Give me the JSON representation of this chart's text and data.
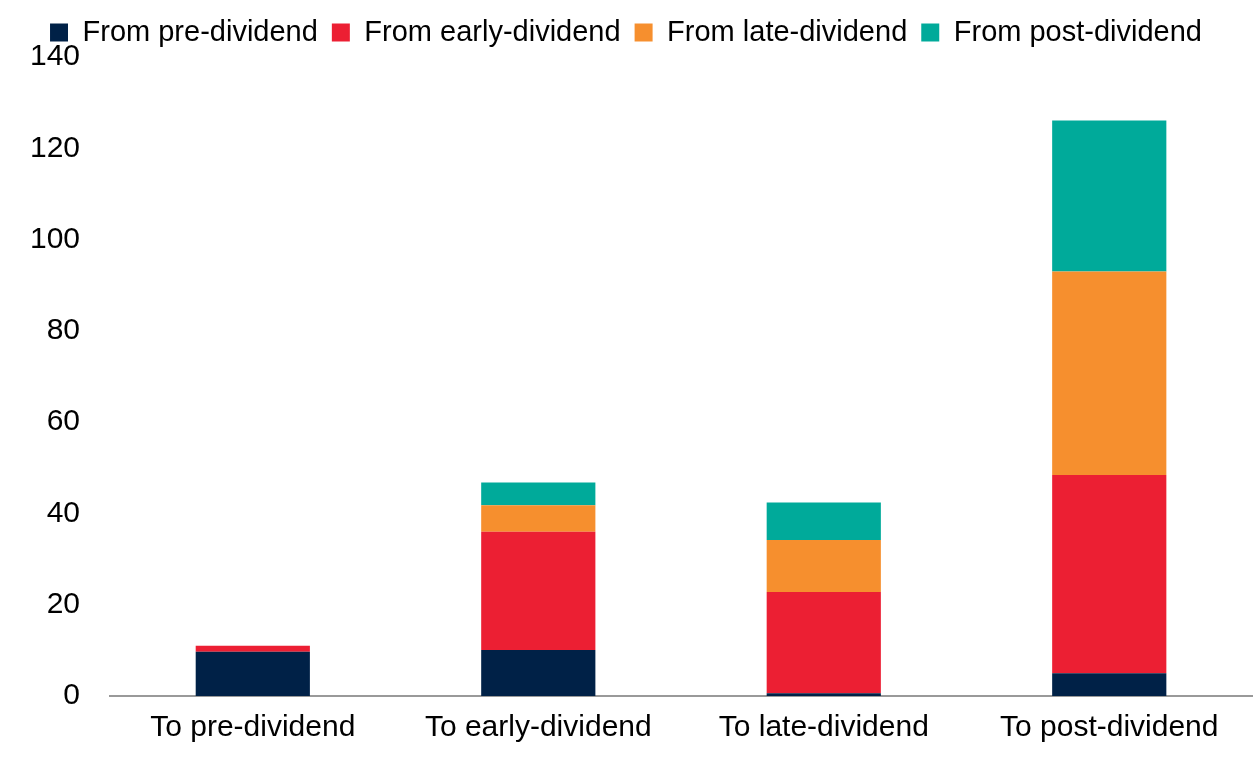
{
  "chart_data": {
    "type": "bar",
    "stacked": true,
    "categories": [
      "To pre-dividend",
      "To early-dividend",
      "To late-dividend",
      "To post-dividend"
    ],
    "series": [
      {
        "name": "From pre-dividend",
        "color": "#002147",
        "values": [
          9.7,
          10.1,
          0.6,
          5.0
        ]
      },
      {
        "name": "From early-dividend",
        "color": "#ec1f33",
        "values": [
          1.3,
          25.9,
          22.2,
          43.4
        ]
      },
      {
        "name": "From late-dividend",
        "color": "#f68f2e",
        "values": [
          0,
          5.8,
          11.4,
          44.6
        ]
      },
      {
        "name": "From post-dividend",
        "color": "#00aa9a",
        "values": [
          0,
          5.0,
          8.2,
          33.1
        ]
      }
    ],
    "ylim": [
      0,
      140
    ],
    "yticks": [
      0,
      20,
      40,
      60,
      80,
      100,
      120,
      140
    ],
    "grid": false,
    "legend": "top"
  }
}
